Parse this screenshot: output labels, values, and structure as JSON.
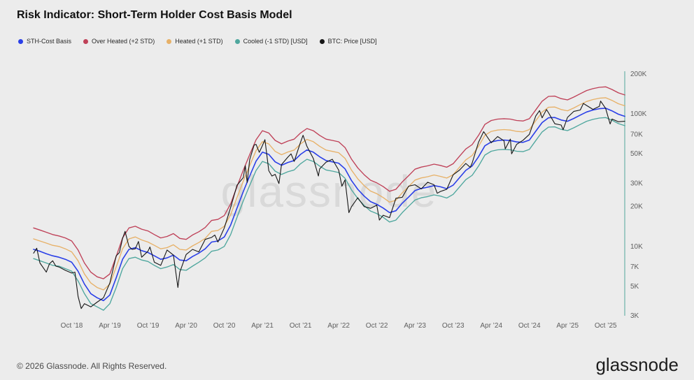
{
  "header": {
    "title": "Risk Indicator: Short-Term Holder Cost Basis Model"
  },
  "legend": {
    "items": [
      {
        "label": "STH-Cost Basis",
        "color": "#2a3fe8"
      },
      {
        "label": "Over Heated (+2 STD)",
        "color": "#bf4158"
      },
      {
        "label": "Heated (+1 STD)",
        "color": "#e7b168"
      },
      {
        "label": "Cooled (-1 STD) [USD]",
        "color": "#4fa79e"
      },
      {
        "label": "BTC: Price [USD]",
        "color": "#161616"
      }
    ]
  },
  "watermark": "glassnode",
  "footer": {
    "copyright": "© 2026 Glassnode. All Rights Reserved.",
    "brand": "glassnode"
  },
  "chart_data": {
    "type": "line",
    "title": "Risk Indicator: Short-Term Holder Cost Basis Model",
    "scale": "log",
    "unit": "USD, values in thousands",
    "x_start_month": "2018-04",
    "x_end_month": "2026-01",
    "ylim_thousands": [
      3,
      200
    ],
    "axis_color": "#9fc9c3",
    "y_ticks": [
      {
        "label": "200K",
        "value": 200
      },
      {
        "label": "100K",
        "value": 100
      },
      {
        "label": "70K",
        "value": 70
      },
      {
        "label": "50K",
        "value": 50
      },
      {
        "label": "30K",
        "value": 30
      },
      {
        "label": "20K",
        "value": 20
      },
      {
        "label": "10K",
        "value": 10
      },
      {
        "label": "7K",
        "value": 7
      },
      {
        "label": "5K",
        "value": 5
      },
      {
        "label": "3K",
        "value": 3
      }
    ],
    "x_ticks": [
      {
        "label": "Oct ’18",
        "index": 6
      },
      {
        "label": "Apr ’19",
        "index": 12
      },
      {
        "label": "Oct ’19",
        "index": 18
      },
      {
        "label": "Apr ’20",
        "index": 24
      },
      {
        "label": "Oct ’20",
        "index": 30
      },
      {
        "label": "Apr ’21",
        "index": 36
      },
      {
        "label": "Oct ’21",
        "index": 42
      },
      {
        "label": "Apr ’22",
        "index": 48
      },
      {
        "label": "Oct ’22",
        "index": 54
      },
      {
        "label": "Apr ’23",
        "index": 60
      },
      {
        "label": "Oct ’23",
        "index": 66
      },
      {
        "label": "Apr ’24",
        "index": 72
      },
      {
        "label": "Oct ’24",
        "index": 78
      },
      {
        "label": "Apr ’25",
        "index": 84
      },
      {
        "label": "Oct ’25",
        "index": 90
      }
    ],
    "series": [
      {
        "id": "over_heated",
        "name": "Over Heated (+2 STD)",
        "color": "#bf4158",
        "values": [
          13.8,
          13.3,
          12.8,
          12.3,
          12.0,
          11.6,
          11.0,
          9.4,
          7.5,
          6.4,
          5.9,
          5.7,
          6.2,
          8.4,
          11.6,
          13.8,
          14.2,
          13.5,
          13.1,
          12.3,
          11.6,
          11.9,
          12.5,
          11.5,
          11.3,
          12.2,
          12.9,
          13.9,
          15.7,
          16.0,
          17.1,
          21.0,
          28.3,
          37.7,
          49.3,
          63.8,
          74.7,
          71.8,
          63.1,
          59.5,
          62.4,
          64.5,
          71.8,
          77.6,
          74.7,
          68.9,
          64.5,
          63.1,
          61.6,
          55.8,
          45.7,
          39.2,
          34.8,
          31.6,
          30.2,
          28.3,
          26.1,
          27.0,
          30.7,
          34.2,
          38.3,
          39.7,
          40.6,
          41.8,
          40.9,
          39.6,
          42.1,
          47.9,
          54.4,
          58.7,
          68.9,
          83.4,
          89.2,
          91.4,
          92.1,
          91.4,
          89.2,
          88.5,
          92.1,
          107.3,
          124.7,
          135.6,
          136.3,
          130.5,
          127.6,
          134.1,
          142.1,
          150.1,
          155.2,
          158.8,
          160.2,
          153.0,
          144.3,
          139.2
        ]
      },
      {
        "id": "heated",
        "name": "Heated (+1 STD)",
        "color": "#e7b168",
        "values": [
          11.4,
          11.0,
          10.6,
          10.2,
          10.0,
          9.6,
          9.1,
          7.8,
          6.2,
          5.3,
          4.9,
          4.7,
          5.2,
          7.0,
          9.6,
          11.4,
          11.8,
          11.2,
          10.8,
          10.2,
          9.6,
          9.8,
          10.3,
          9.5,
          9.4,
          10.1,
          10.7,
          11.5,
          13.0,
          13.2,
          14.2,
          17.4,
          23.4,
          31.2,
          40.8,
          52.8,
          61.8,
          59.4,
          52.2,
          49.2,
          51.6,
          53.4,
          59.4,
          64.2,
          61.8,
          57.0,
          53.4,
          52.2,
          51.0,
          46.2,
          37.8,
          32.4,
          28.8,
          26.2,
          25.0,
          23.4,
          21.6,
          22.3,
          25.4,
          28.3,
          31.7,
          32.9,
          33.6,
          34.6,
          33.8,
          32.8,
          34.8,
          39.6,
          45.0,
          48.6,
          57.0,
          69.0,
          73.8,
          75.6,
          76.2,
          75.6,
          73.8,
          73.2,
          76.2,
          88.8,
          103.2,
          112.2,
          112.8,
          108.0,
          105.6,
          111.0,
          117.6,
          124.2,
          128.4,
          131.4,
          132.6,
          126.6,
          119.4,
          115.2
        ]
      },
      {
        "id": "cooled",
        "name": "Cooled (-1 STD) [USD]",
        "color": "#4fa79e",
        "values": [
          8.1,
          7.8,
          7.5,
          7.2,
          7.1,
          6.8,
          6.5,
          5.5,
          4.4,
          3.7,
          3.5,
          3.3,
          3.7,
          4.9,
          6.8,
          8.1,
          8.3,
          7.9,
          7.7,
          7.2,
          6.8,
          7.0,
          7.3,
          6.7,
          6.6,
          7.1,
          7.6,
          8.2,
          9.2,
          9.4,
          10.0,
          12.3,
          16.6,
          22.1,
          28.9,
          37.4,
          43.8,
          42.1,
          37.0,
          34.9,
          36.6,
          37.8,
          42.1,
          45.5,
          43.8,
          40.4,
          37.8,
          37.0,
          36.1,
          32.7,
          26.8,
          23.0,
          20.4,
          18.5,
          17.7,
          16.6,
          15.3,
          15.8,
          18.0,
          20.1,
          22.4,
          23.3,
          23.8,
          24.5,
          24.0,
          23.2,
          24.7,
          28.1,
          31.9,
          34.4,
          40.4,
          48.9,
          52.3,
          53.6,
          54.0,
          53.6,
          52.3,
          51.9,
          54.0,
          62.9,
          73.1,
          79.5,
          79.9,
          76.5,
          74.8,
          78.6,
          83.3,
          88.0,
          91.0,
          93.1,
          93.9,
          89.7,
          84.6,
          81.6
        ]
      },
      {
        "id": "sth_cost_basis",
        "name": "STH-Cost Basis",
        "color": "#2a3fe8",
        "values": [
          9.5,
          9.2,
          8.8,
          8.5,
          8.3,
          8.0,
          7.6,
          6.5,
          5.2,
          4.4,
          4.1,
          3.9,
          4.3,
          5.8,
          8.0,
          9.5,
          9.8,
          9.3,
          9.0,
          8.5,
          8.0,
          8.2,
          8.6,
          7.9,
          7.8,
          8.4,
          8.9,
          9.6,
          10.8,
          11.0,
          11.8,
          14.5,
          19.5,
          26.0,
          34.0,
          44.0,
          51.5,
          49.5,
          43.5,
          41.0,
          43.0,
          44.5,
          49.5,
          53.5,
          51.5,
          47.5,
          44.5,
          43.5,
          42.5,
          38.5,
          31.5,
          27.0,
          24.0,
          21.8,
          20.8,
          19.5,
          18.0,
          18.6,
          21.2,
          23.6,
          26.4,
          27.4,
          28.0,
          28.8,
          28.2,
          27.3,
          29.0,
          33.0,
          37.5,
          40.5,
          47.5,
          57.5,
          61.5,
          63.0,
          63.5,
          63.0,
          61.5,
          61.0,
          63.5,
          74.0,
          86.0,
          93.5,
          94.0,
          90.0,
          88.0,
          92.5,
          98.0,
          103.5,
          107.0,
          109.5,
          110.5,
          105.5,
          99.5,
          96.0
        ]
      },
      {
        "id": "btc_price",
        "name": "BTC: Price [USD]",
        "color": "#161616",
        "x": [
          0,
          0.5,
          1,
          2,
          2.5,
          3,
          3.5,
          4,
          5,
          6,
          6.5,
          7,
          7.5,
          8,
          9,
          10,
          11,
          12,
          13,
          13.5,
          14,
          14.4,
          15,
          15.5,
          16,
          16.5,
          17,
          18,
          18.3,
          19,
          20,
          21,
          22,
          22.7,
          23,
          24,
          25,
          26,
          27,
          28,
          28.5,
          29,
          30,
          31,
          32,
          33,
          33.3,
          33.6,
          34,
          34.7,
          35,
          35.5,
          36,
          36.4,
          37,
          37.5,
          38,
          38.6,
          39,
          40,
          40.5,
          41,
          42,
          42.4,
          43,
          44,
          44.8,
          45,
          46,
          47,
          48,
          48.5,
          49,
          49.6,
          50,
          51,
          52,
          53,
          54,
          54.4,
          55,
          56,
          57,
          58,
          59,
          60,
          61,
          62,
          63,
          63.5,
          64,
          65,
          66,
          67,
          68,
          68.7,
          69,
          70,
          70.8,
          71,
          72,
          73,
          74,
          74.2,
          75,
          75.2,
          76,
          77,
          78,
          79,
          79.6,
          80,
          80.7,
          81,
          82,
          83,
          83.3,
          84,
          85,
          86,
          86.5,
          87,
          88,
          89,
          89.2,
          90,
          90.7,
          91,
          92,
          93
        ],
        "values": [
          8.9,
          9.7,
          7.5,
          6.4,
          7.4,
          7.8,
          7.1,
          7.0,
          6.6,
          6.3,
          6.4,
          4.2,
          3.4,
          3.7,
          3.5,
          3.8,
          4.1,
          5.3,
          8.5,
          9.0,
          11.5,
          13.0,
          10.0,
          9.5,
          9.6,
          10.9,
          8.3,
          9.2,
          9.9,
          7.6,
          7.2,
          9.4,
          8.6,
          4.9,
          6.4,
          8.7,
          9.5,
          9.1,
          11.3,
          11.7,
          12.2,
          10.8,
          13.8,
          19.7,
          29.0,
          33.1,
          40.7,
          30.4,
          45.2,
          58.3,
          58.9,
          51.3,
          57.7,
          64.0,
          37.3,
          34.0,
          35.0,
          29.8,
          41.5,
          47.2,
          50.0,
          43.8,
          61.3,
          69.0,
          57.0,
          46.2,
          34.0,
          38.5,
          43.2,
          45.5,
          37.7,
          28.5,
          31.8,
          18.0,
          19.9,
          23.3,
          20.0,
          19.4,
          20.5,
          15.8,
          17.2,
          16.5,
          23.1,
          23.5,
          28.5,
          29.2,
          27.2,
          30.5,
          29.2,
          25.2,
          26.0,
          27.0,
          34.7,
          37.7,
          42.3,
          39.5,
          42.6,
          61.2,
          73.5,
          71.3,
          60.6,
          67.5,
          62.7,
          54.5,
          64.6,
          50.0,
          59.0,
          63.3,
          70.2,
          96.4,
          106.0,
          93.4,
          108.0,
          102.1,
          84.3,
          82.5,
          76.0,
          94.2,
          104.6,
          107.1,
          120.0,
          115.8,
          108.2,
          114.0,
          125.0,
          110.1,
          84.0,
          91.5,
          87.3,
          88.0
        ]
      }
    ]
  }
}
